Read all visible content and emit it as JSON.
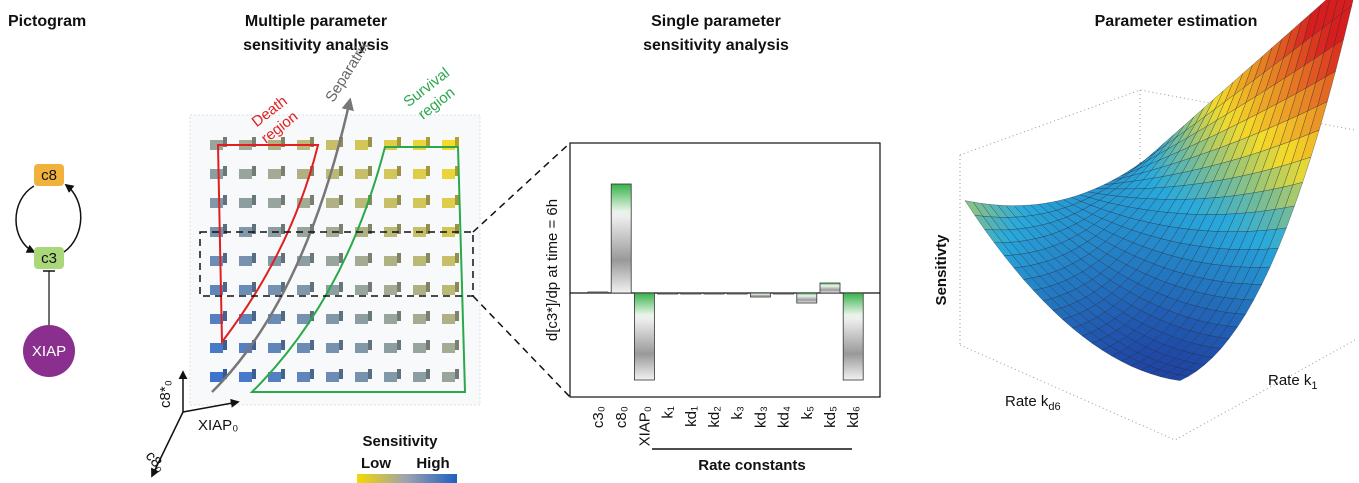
{
  "panels": {
    "pictogram": {
      "title": "Pictogram",
      "nodes": [
        "c8",
        "c3",
        "XIAP"
      ]
    },
    "multiple": {
      "title": [
        "Multiple parameter",
        "sensitivity analysis"
      ],
      "regions": {
        "death": [
          "Death",
          "region"
        ],
        "separatrix": "Separatrix",
        "survival": [
          "Survival",
          "region"
        ]
      },
      "axes": {
        "c8_star": "c8*₀",
        "xiap": "XIAP₀",
        "c8": "c8₀"
      },
      "legend": {
        "title": "Sensitivity",
        "low": "Low",
        "high": "High"
      }
    },
    "estimation": {
      "title": "Parameter estimation",
      "z_label": "Sensitivty",
      "x_label": {
        "main": "Rate k",
        "sub": "d6"
      },
      "y_label": {
        "main": "Rate k",
        "sub": "1"
      }
    }
  },
  "chart_data": {
    "type": "bar",
    "title": [
      "Single parameter",
      "sensitivity analysis"
    ],
    "y_label": "d[c3*]/dp at time = 6h",
    "group_label": "Rate constants",
    "categories": [
      "c3₀",
      "c8₀",
      "XIAP₀",
      "k₁",
      "kd₁",
      "kd₂",
      "k₃",
      "kd₃",
      "kd₄",
      "k₅",
      "kd₅",
      "kd₆"
    ],
    "values": [
      0.01,
      1.09,
      -0.87,
      -0.01,
      -0.01,
      -0.01,
      -0.01,
      -0.04,
      -0.01,
      -0.1,
      0.1,
      -0.87
    ],
    "ylim": [
      -1.04,
      1.5
    ]
  }
}
